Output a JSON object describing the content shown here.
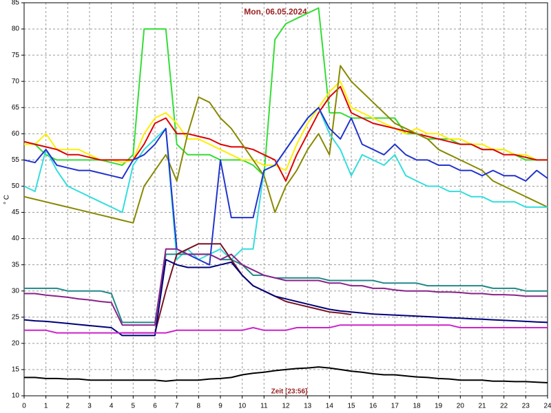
{
  "chart_data": {
    "type": "line",
    "title": "Mon, 06.05.2024",
    "xlabel": "Zeit [23:56]",
    "ylabel": "° C",
    "x": [
      0,
      0.5,
      1,
      1.5,
      2,
      2.5,
      3,
      3.5,
      4,
      4.5,
      5,
      5.5,
      6,
      6.5,
      7,
      7.5,
      8,
      8.5,
      9,
      9.5,
      10,
      10.5,
      11,
      11.5,
      12,
      12.5,
      13,
      13.5,
      14,
      14.5,
      15,
      15.5,
      16,
      16.5,
      17,
      17.5,
      18,
      18.5,
      19,
      19.5,
      20,
      20.5,
      21,
      21.5,
      22,
      22.5,
      23,
      23.5,
      24
    ],
    "xlim": [
      0,
      24
    ],
    "ylim": [
      10,
      85
    ],
    "xticks": [
      0,
      1,
      2,
      3,
      4,
      5,
      6,
      7,
      8,
      9,
      10,
      11,
      12,
      13,
      14,
      15,
      16,
      17,
      18,
      19,
      20,
      21,
      22,
      23,
      24
    ],
    "yticks": [
      10,
      15,
      20,
      25,
      30,
      35,
      40,
      45,
      50,
      55,
      60,
      65,
      70,
      75,
      80,
      85
    ],
    "grid": true,
    "series": [
      {
        "color": "#33dd33",
        "values": [
          58.5,
          58,
          56,
          55,
          55,
          55,
          55,
          55,
          54.5,
          54,
          56,
          80,
          80,
          80,
          58,
          56,
          56,
          56,
          55,
          55,
          55,
          54,
          52,
          78,
          81,
          82,
          83,
          84,
          64,
          64,
          63,
          63,
          63,
          63,
          63,
          60,
          60,
          59,
          59,
          59,
          58,
          58,
          57,
          57,
          57,
          56,
          55,
          55,
          55
        ]
      },
      {
        "color": "#ffee00",
        "values": [
          58,
          58,
          60,
          57,
          57,
          57,
          56,
          55,
          55,
          54.5,
          55,
          60,
          63,
          64,
          62,
          59,
          59,
          58,
          57,
          56,
          55,
          55,
          54,
          54,
          53,
          58,
          62,
          65,
          68,
          70,
          65,
          64,
          63,
          62,
          61,
          60,
          61,
          60,
          60,
          59,
          59,
          58,
          58,
          57,
          57,
          56,
          56,
          55,
          55
        ]
      },
      {
        "color": "#dd0000",
        "values": [
          58.5,
          58,
          57.5,
          57,
          56,
          56,
          55.5,
          55,
          55,
          55,
          55,
          58,
          62,
          63,
          60,
          60,
          59.5,
          59,
          58,
          57.5,
          57.5,
          57,
          56,
          55,
          51,
          56,
          60,
          64,
          67,
          69,
          64,
          63,
          62,
          61.5,
          61,
          60.5,
          60,
          59.5,
          59,
          58.5,
          58,
          58,
          57,
          57,
          56,
          56,
          55.5,
          55,
          55
        ]
      },
      {
        "color": "#888800",
        "values": [
          48,
          47.5,
          47,
          46.5,
          46,
          45.5,
          45,
          44.5,
          44,
          43.5,
          43,
          50,
          53,
          56,
          51,
          60,
          67,
          66,
          63,
          61,
          58,
          55,
          52,
          45,
          50,
          53,
          57,
          60,
          56,
          73,
          70,
          68,
          66,
          64,
          62,
          61,
          60,
          59,
          57,
          56,
          55,
          54,
          53,
          51,
          50,
          49,
          48,
          47,
          46
        ]
      },
      {
        "color": "#33dddd",
        "values": [
          50,
          49,
          57,
          53,
          50,
          49,
          48,
          47,
          46,
          45,
          54,
          57,
          59,
          61,
          36,
          38,
          36,
          37,
          38,
          36,
          38,
          38,
          53,
          54,
          57,
          60,
          63,
          65,
          60,
          57,
          52,
          56,
          55,
          54,
          56,
          52,
          51,
          50,
          50,
          49,
          49,
          48,
          48,
          47,
          47,
          47,
          46,
          46,
          46
        ]
      },
      {
        "color": "#2233cc",
        "values": [
          55,
          54.5,
          57,
          54,
          53.5,
          53,
          53,
          52.5,
          52,
          51.5,
          55,
          56,
          58,
          61,
          38,
          37,
          36,
          35,
          55,
          44,
          44,
          44,
          53,
          54,
          57,
          60,
          63,
          65,
          61,
          59,
          63,
          58,
          57,
          56,
          58,
          56,
          55,
          55,
          54,
          54,
          53,
          53,
          52,
          53,
          52,
          52,
          51,
          53,
          51.5
        ]
      },
      {
        "color": "#228888",
        "values": [
          30.5,
          30.5,
          30.5,
          30.5,
          30,
          30,
          30,
          30,
          29.5,
          24,
          24,
          24,
          24,
          37,
          37,
          37,
          37,
          37,
          36,
          36,
          35,
          33,
          33,
          32.5,
          32.5,
          32.5,
          32.5,
          32.5,
          32,
          32,
          32,
          32,
          32,
          31.5,
          31.5,
          31.5,
          31.5,
          31,
          31,
          31,
          31,
          31,
          31,
          30.5,
          30.5,
          30.5,
          30,
          30,
          30
        ]
      },
      {
        "color": "#882288",
        "values": [
          29.5,
          29.5,
          29.2,
          29,
          28.8,
          28.5,
          28.3,
          28,
          27.8,
          23.5,
          23.5,
          23.5,
          23.5,
          38,
          38,
          37,
          37,
          37,
          36,
          37,
          35,
          34,
          33,
          32.5,
          32,
          32,
          32,
          32,
          31.5,
          31.5,
          31,
          31,
          30.5,
          30.5,
          30.2,
          30,
          30,
          30,
          29.8,
          29.8,
          29.7,
          29.5,
          29.5,
          29.3,
          29.3,
          29.2,
          29,
          29,
          29
        ]
      },
      {
        "color": "#771122",
        "values": [
          null,
          null,
          null,
          null,
          null,
          null,
          null,
          null,
          null,
          22,
          22,
          22,
          22,
          30,
          37,
          38,
          39,
          39,
          39,
          36,
          33,
          31,
          30,
          29,
          28,
          27.5,
          27,
          26.5,
          26,
          25.8,
          25.5,
          null,
          null,
          null,
          null,
          null,
          null,
          null,
          null,
          null,
          null,
          null,
          null,
          null,
          null,
          null,
          null,
          null,
          null
        ]
      },
      {
        "color": "#000077",
        "values": [
          24.5,
          24.3,
          24.2,
          24,
          23.8,
          23.6,
          23.4,
          23.2,
          23,
          21.5,
          21.5,
          21.5,
          21.5,
          36,
          35,
          34.5,
          34.5,
          34.5,
          35,
          35.5,
          33,
          31,
          30,
          29,
          28.5,
          28,
          27.5,
          27,
          26.5,
          26.2,
          26,
          25.8,
          25.6,
          25.5,
          25.4,
          25.3,
          25.2,
          25.1,
          25,
          24.9,
          24.8,
          24.7,
          24.6,
          24.5,
          24.4,
          24.3,
          24.2,
          24.1,
          24
        ]
      },
      {
        "color": "#cc22cc",
        "values": [
          22.5,
          22.5,
          22.5,
          22,
          22,
          22,
          22,
          22,
          22,
          22,
          22,
          22,
          22,
          22,
          22.5,
          22.5,
          22.5,
          22.5,
          22.5,
          22.5,
          22.5,
          23,
          22.5,
          22.5,
          22.5,
          23,
          23,
          23,
          23,
          23.5,
          23.5,
          23.5,
          23.5,
          23.5,
          23.5,
          23.5,
          23.5,
          23.5,
          23.5,
          23.5,
          23,
          23,
          23,
          23,
          23,
          23,
          23,
          23,
          23
        ]
      },
      {
        "color": "#000000",
        "values": [
          13.5,
          13.5,
          13.3,
          13.3,
          13.2,
          13.2,
          13,
          13,
          13,
          13,
          13,
          13,
          13,
          12.8,
          13,
          13,
          13,
          13.2,
          13.3,
          13.5,
          14,
          14.3,
          14.5,
          14.8,
          15,
          15.2,
          15.3,
          15.5,
          15.3,
          15,
          14.7,
          14.5,
          14.2,
          14,
          14,
          13.8,
          13.6,
          13.5,
          13.3,
          13.2,
          13,
          13,
          13,
          12.8,
          12.8,
          12.7,
          12.7,
          12.6,
          12.5
        ]
      }
    ]
  }
}
